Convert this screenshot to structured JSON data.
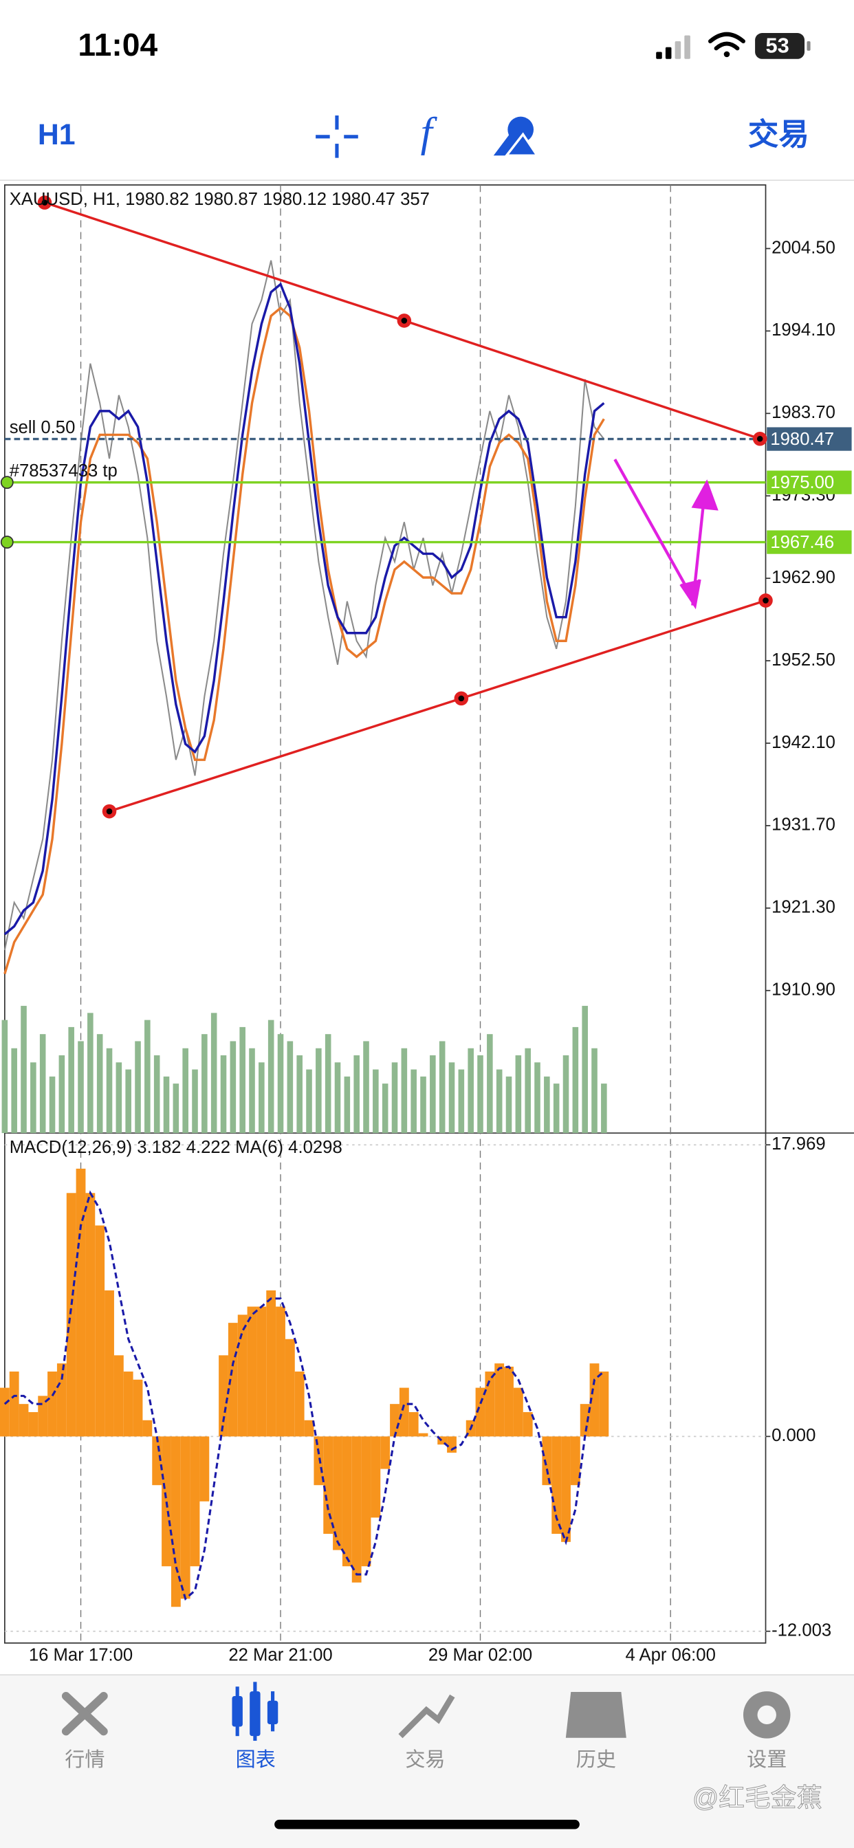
{
  "status": {
    "time": "11:04",
    "battery": "53"
  },
  "toolbar": {
    "timeframe": "H1",
    "trade": "交易"
  },
  "tabs": [
    "行情",
    "图表",
    "交易",
    "历史",
    "设置"
  ],
  "watermark": "@红毛金蕉",
  "chart_data": [
    {
      "type": "line",
      "title": "XAUUSD, H1, 1980.82 1980.87 1980.12 1980.47 357",
      "xlim": [
        0,
        80
      ],
      "ylim": [
        1892.92,
        2012.52
      ],
      "yticks": [
        {
          "value": 2004.5,
          "label": "2004.50"
        },
        {
          "value": 1994.1,
          "label": "1994.10"
        },
        {
          "value": 1983.7,
          "label": "1983.70"
        },
        {
          "value": 1973.3,
          "label": "1973.30"
        },
        {
          "value": 1962.9,
          "label": "1962.90"
        },
        {
          "value": 1952.5,
          "label": "1952.50"
        },
        {
          "value": 1942.1,
          "label": "1942.10"
        },
        {
          "value": 1931.7,
          "label": "1931.70"
        },
        {
          "value": 1921.3,
          "label": "1921.30"
        },
        {
          "value": 1910.9,
          "label": "1910.90"
        }
      ],
      "series": [
        {
          "color": "#8a8a8a",
          "values": [
            1916,
            1922,
            1920,
            1925,
            1930,
            1940,
            1955,
            1968,
            1980,
            1990,
            1985,
            1978,
            1986,
            1982,
            1976,
            1968,
            1955,
            1948,
            1940,
            1944,
            1938,
            1948,
            1955,
            1966,
            1975,
            1985,
            1995,
            1998,
            2003,
            1996,
            1998,
            1985,
            1975,
            1965,
            1958,
            1952,
            1960,
            1955,
            1953,
            1962,
            1968,
            1965,
            1970,
            1964,
            1968,
            1962,
            1966,
            1961,
            1966,
            1972,
            1978,
            1984,
            1980,
            1986,
            1982,
            1975,
            1966,
            1958,
            1954,
            1960,
            1972,
            1988,
            1982,
            1980.47
          ]
        },
        {
          "color": "#e8782a",
          "values": [
            1913,
            1917,
            1919,
            1921,
            1923,
            1930,
            1942,
            1956,
            1970,
            1978,
            1981,
            1981,
            1981,
            1981,
            1980,
            1978,
            1970,
            1960,
            1950,
            1944,
            1940,
            1940,
            1945,
            1954,
            1965,
            1976,
            1985,
            1991,
            1996,
            1997,
            1996,
            1992,
            1984,
            1973,
            1964,
            1958,
            1954,
            1953,
            1954,
            1955,
            1960,
            1964,
            1965,
            1964,
            1963,
            1963,
            1962,
            1961,
            1961,
            1964,
            1970,
            1977,
            1980,
            1981,
            1980,
            1978,
            1970,
            1960,
            1955,
            1955,
            1962,
            1973,
            1981,
            1983
          ]
        },
        {
          "color": "#1a1aa8",
          "values": [
            1918,
            1919,
            1921,
            1922,
            1926,
            1935,
            1948,
            1962,
            1975,
            1982,
            1984,
            1984,
            1983,
            1984,
            1982,
            1975,
            1965,
            1955,
            1947,
            1942,
            1941,
            1943,
            1950,
            1960,
            1971,
            1981,
            1989,
            1995,
            1999,
            2000,
            1997,
            1990,
            1980,
            1970,
            1962,
            1958,
            1956,
            1956,
            1956,
            1958,
            1963,
            1967,
            1968,
            1967,
            1966,
            1966,
            1965,
            1963,
            1964,
            1967,
            1974,
            1980,
            1983,
            1984,
            1983,
            1980,
            1972,
            1963,
            1958,
            1958,
            1965,
            1976,
            1984,
            1985
          ]
        }
      ],
      "volume": {
        "color": "#8fb88f",
        "values": [
          80,
          60,
          90,
          50,
          70,
          40,
          55,
          75,
          65,
          85,
          70,
          60,
          50,
          45,
          65,
          80,
          55,
          40,
          35,
          60,
          45,
          70,
          85,
          55,
          65,
          75,
          60,
          50,
          80,
          70,
          65,
          55,
          45,
          60,
          70,
          50,
          40,
          55,
          65,
          45,
          35,
          50,
          60,
          45,
          40,
          55,
          65,
          50,
          45,
          60,
          55,
          70,
          45,
          40,
          55,
          60,
          50,
          40,
          35,
          55,
          75,
          90,
          60,
          35
        ]
      },
      "price_lines": [
        {
          "value": 1980.47,
          "color": "#3d5f80",
          "tag": "sell 0.50"
        },
        {
          "value": 1975,
          "label": "1975.00",
          "color": "#7ed321",
          "tag": "#78537433 tp"
        },
        {
          "value": 1967.46,
          "color": "#7ed321"
        }
      ],
      "trendlines": [
        {
          "color": "#e02020",
          "x": [
            4.2,
            42,
            79.4
          ],
          "y": [
            2010.3,
            1995.4,
            1980.5
          ]
        },
        {
          "color": "#e02020",
          "x": [
            11,
            48,
            80
          ],
          "y": [
            1933.5,
            1947.75,
            1960.1
          ]
        }
      ]
    },
    {
      "type": "bar",
      "title": "MACD(12,26,9) 3.182 4.222 MA(6) 4.0298",
      "xlim": [
        0,
        80
      ],
      "xticks": [
        {
          "value": 8,
          "label": "16 Mar 17:00"
        },
        {
          "value": 29,
          "label": "22 Mar 21:00"
        },
        {
          "value": 50,
          "label": "29 Mar 02:00"
        },
        {
          "value": 70,
          "label": "4 Apr 06:00"
        }
      ],
      "grid": true,
      "ylim": [
        -12.003,
        17.969
      ],
      "yticks": [
        17.969,
        {
          "value": 0,
          "label": "0.000"
        },
        -12.003
      ],
      "color": "#f7941d",
      "values": [
        3,
        4,
        2,
        1.5,
        2.5,
        4,
        4.5,
        15,
        16.5,
        15,
        13,
        9,
        5,
        4,
        3.5,
        1,
        -3,
        -8,
        -10.5,
        -10,
        -8,
        -4,
        0,
        5,
        7,
        7.5,
        8,
        8,
        9,
        8,
        6,
        4,
        1,
        -3,
        -6,
        -7,
        -8,
        -9,
        -8,
        -5,
        -2,
        2,
        3,
        1.5,
        0.2,
        0,
        -0.5,
        -1,
        0,
        1,
        3,
        4,
        4.5,
        4.3,
        3,
        1.5,
        0,
        -3,
        -6,
        -6.5,
        -3,
        2,
        4.5,
        4
      ],
      "series": [
        {
          "color": "#1a1aa8",
          "values": [
            2,
            2.5,
            2.5,
            2,
            2,
            2.5,
            3.5,
            8,
            13,
            15,
            14,
            12,
            9,
            6,
            4.5,
            3,
            0,
            -4,
            -8,
            -10,
            -9.5,
            -7,
            -3,
            1,
            4.5,
            6.5,
            7.5,
            8,
            8.5,
            8.5,
            7,
            5,
            2.5,
            -1,
            -4.5,
            -6.5,
            -7.5,
            -8.5,
            -8.5,
            -6.5,
            -3.5,
            0,
            2,
            2,
            1,
            0.3,
            -0.3,
            -0.8,
            -0.5,
            0.5,
            2,
            3.5,
            4.2,
            4.3,
            3.5,
            2,
            0.5,
            -2,
            -5,
            -6.5,
            -4.5,
            0,
            3.5,
            4
          ]
        }
      ]
    }
  ]
}
